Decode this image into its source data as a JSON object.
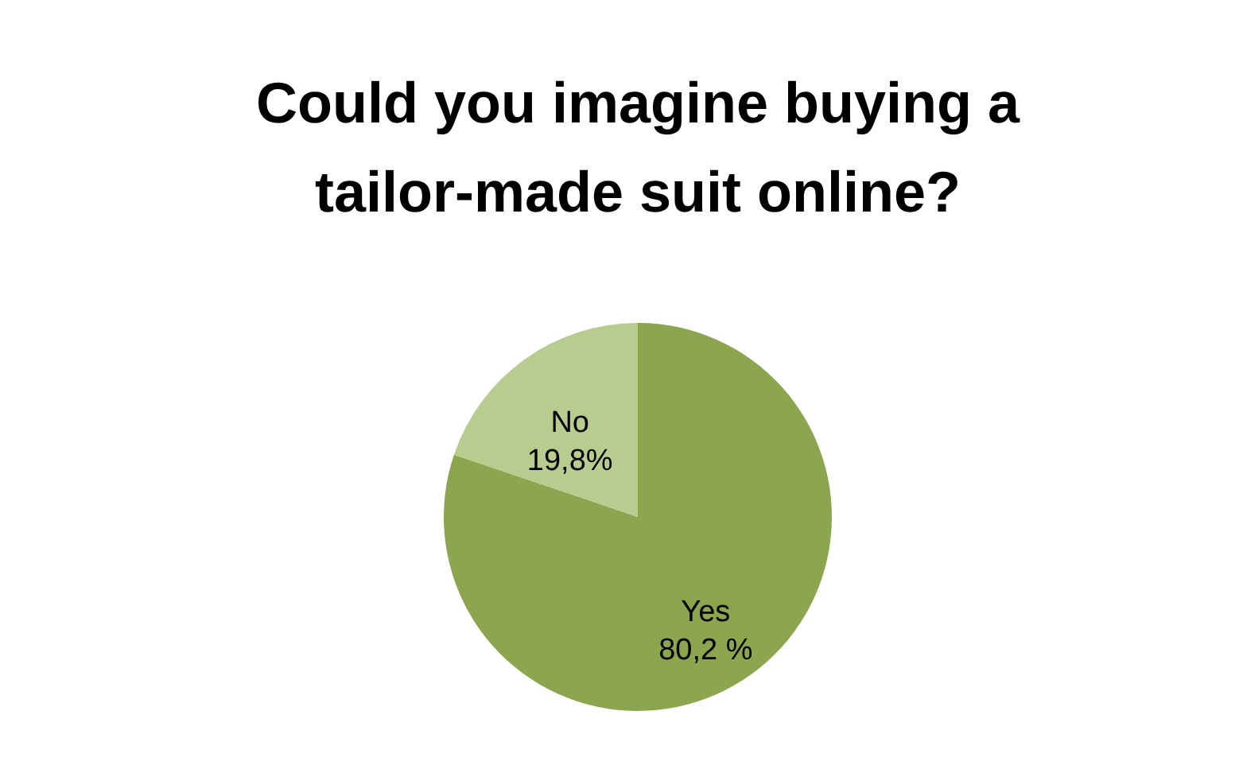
{
  "chart_data": {
    "type": "pie",
    "title": [
      "Could you imagine buying a",
      "tailor-made suit online?"
    ],
    "categories": [
      "Yes",
      "No"
    ],
    "values": [
      80.2,
      19.8
    ],
    "value_labels": [
      "80,2 %",
      "19,8%"
    ],
    "colors": [
      "#8ba64f",
      "#b7cd8f"
    ],
    "legend": false
  }
}
